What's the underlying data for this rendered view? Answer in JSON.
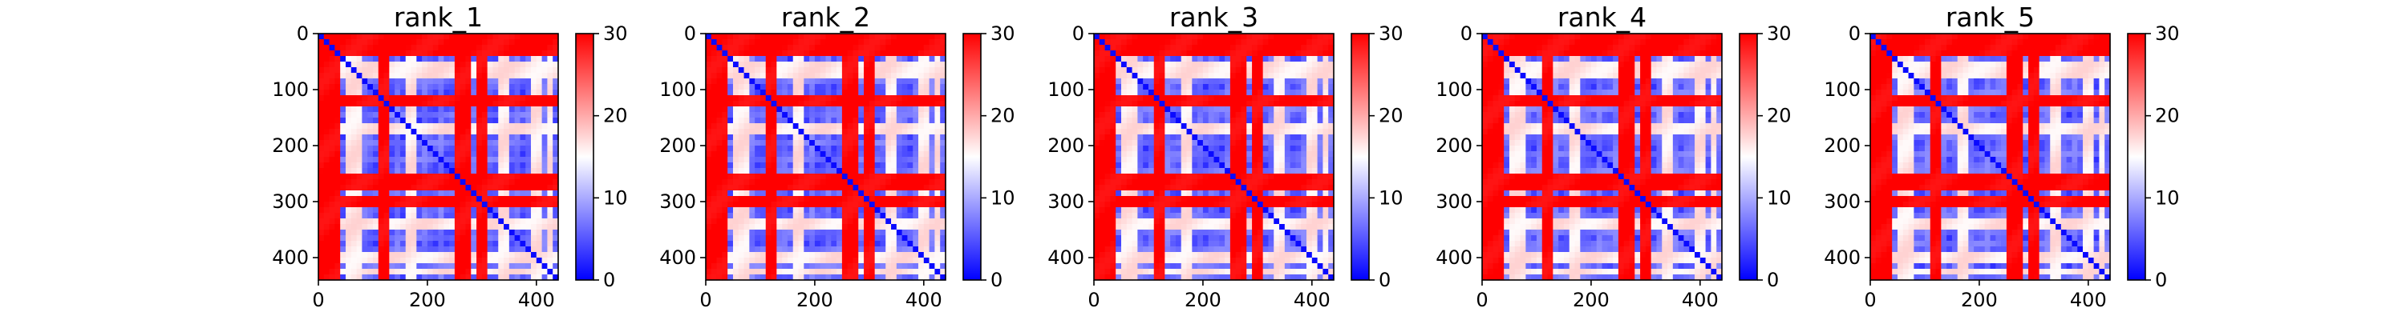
{
  "chart_data": {
    "type": "heatmap",
    "colormap": {
      "name": "bwr",
      "low": "#0000ff",
      "mid": "#ffffff",
      "high": "#ff0000"
    },
    "panels": [
      {
        "title": "rank_1",
        "x_ticks": [
          "0",
          "200",
          "400"
        ],
        "y_ticks": [
          "0",
          "100",
          "200",
          "300",
          "400"
        ],
        "colorbar_ticks": [
          "0",
          "10",
          "20",
          "30"
        ],
        "xlim": [
          0,
          440
        ],
        "ylim": [
          440,
          0
        ],
        "clim": [
          0,
          30
        ]
      },
      {
        "title": "rank_2",
        "x_ticks": [
          "0",
          "200",
          "400"
        ],
        "y_ticks": [
          "0",
          "100",
          "200",
          "300",
          "400"
        ],
        "colorbar_ticks": [
          "0",
          "10",
          "20",
          "30"
        ],
        "xlim": [
          0,
          440
        ],
        "ylim": [
          440,
          0
        ],
        "clim": [
          0,
          30
        ]
      },
      {
        "title": "rank_3",
        "x_ticks": [
          "0",
          "200",
          "400"
        ],
        "y_ticks": [
          "0",
          "100",
          "200",
          "300",
          "400"
        ],
        "colorbar_ticks": [
          "0",
          "10",
          "20",
          "30"
        ],
        "xlim": [
          0,
          440
        ],
        "ylim": [
          440,
          0
        ],
        "clim": [
          0,
          30
        ]
      },
      {
        "title": "rank_4",
        "x_ticks": [
          "0",
          "200",
          "400"
        ],
        "y_ticks": [
          "0",
          "100",
          "200",
          "300",
          "400"
        ],
        "colorbar_ticks": [
          "0",
          "10",
          "20",
          "30"
        ],
        "xlim": [
          0,
          440
        ],
        "ylim": [
          440,
          0
        ],
        "clim": [
          0,
          30
        ]
      },
      {
        "title": "rank_5",
        "x_ticks": [
          "0",
          "200",
          "400"
        ],
        "y_ticks": [
          "0",
          "100",
          "200",
          "300",
          "400"
        ],
        "colorbar_ticks": [
          "0",
          "10",
          "20",
          "30"
        ],
        "xlim": [
          0,
          440
        ],
        "ylim": [
          440,
          0
        ],
        "clim": [
          0,
          30
        ]
      }
    ],
    "bands": {
      "n_residues": 440,
      "high_regions": [
        [
          0,
          38
        ],
        [
          110,
          130
        ],
        [
          255,
          280
        ],
        [
          290,
          305
        ]
      ],
      "mid_regions": [
        [
          55,
          75
        ],
        [
          160,
          175
        ],
        [
          330,
          345
        ],
        [
          395,
          410
        ],
        [
          420,
          430
        ]
      ]
    }
  }
}
